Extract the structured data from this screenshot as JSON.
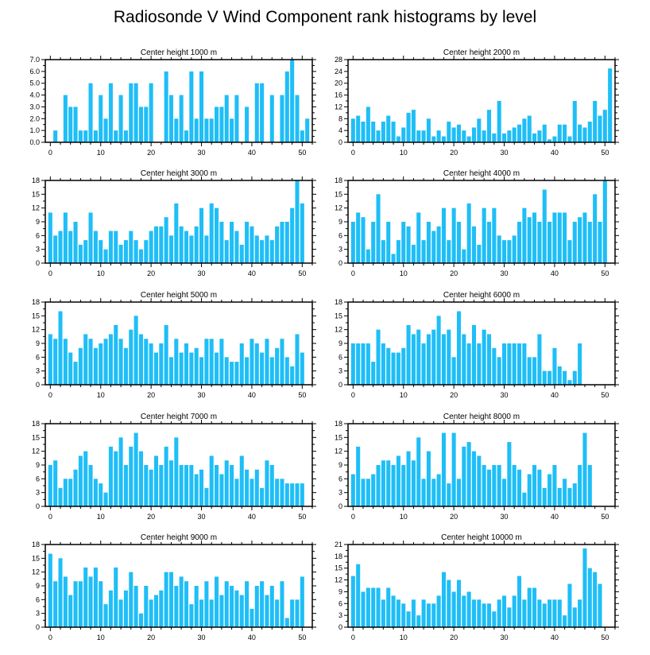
{
  "page_title": "Radiosonde V Wind Component rank histograms by level",
  "chart_data": [
    {
      "type": "bar",
      "title": "Center height 1000 m",
      "xlim": [
        -1,
        52
      ],
      "ylim": [
        0,
        7
      ],
      "yticks": [
        "0.0",
        "1.0",
        "2.0",
        "3.0",
        "4.0",
        "5.0",
        "6.0",
        "7.0"
      ],
      "ytick_values": [
        0,
        1,
        2,
        3,
        4,
        5,
        6,
        7
      ],
      "xticks": [
        "0",
        "10",
        "20",
        "30",
        "40",
        "50"
      ],
      "xtick_values": [
        0,
        10,
        20,
        30,
        40,
        50
      ],
      "values": [
        0,
        1,
        0,
        4,
        3,
        3,
        1,
        1,
        5,
        1,
        4,
        2,
        5,
        1,
        4,
        1,
        5,
        5,
        3,
        3,
        5,
        0,
        0,
        6,
        4,
        2,
        4,
        1,
        6,
        2,
        6,
        2,
        2,
        3,
        3,
        4,
        2,
        4,
        0,
        3,
        0,
        5,
        5,
        0,
        4,
        0,
        4,
        6,
        7,
        4,
        1,
        2
      ]
    },
    {
      "type": "bar",
      "title": "Center height 2000 m",
      "xlim": [
        -1,
        52
      ],
      "ylim": [
        0,
        28
      ],
      "yticks": [
        "0",
        "4",
        "8",
        "12",
        "16",
        "20",
        "24",
        "28"
      ],
      "ytick_values": [
        0,
        4,
        8,
        12,
        16,
        20,
        24,
        28
      ],
      "xticks": [
        "0",
        "10",
        "20",
        "30",
        "40",
        "50"
      ],
      "xtick_values": [
        0,
        10,
        20,
        30,
        40,
        50
      ],
      "values": [
        8,
        9,
        7,
        12,
        7,
        4,
        7,
        9,
        7,
        2,
        5,
        10,
        11,
        4,
        4,
        8,
        2,
        4,
        2,
        7,
        5,
        6,
        4,
        2,
        5,
        8,
        4,
        11,
        3,
        14,
        3,
        4,
        5,
        6,
        8,
        9,
        3,
        4,
        6,
        1,
        2,
        6,
        6,
        2,
        14,
        6,
        5,
        7,
        14,
        9,
        11,
        25
      ]
    },
    {
      "type": "bar",
      "title": "Center height 3000 m",
      "xlim": [
        -1,
        52
      ],
      "ylim": [
        0,
        18
      ],
      "yticks": [
        "0",
        "3",
        "6",
        "9",
        "12",
        "15",
        "18"
      ],
      "ytick_values": [
        0,
        3,
        6,
        9,
        12,
        15,
        18
      ],
      "xticks": [
        "0",
        "10",
        "20",
        "30",
        "40",
        "50"
      ],
      "xtick_values": [
        0,
        10,
        20,
        30,
        40,
        50
      ],
      "values": [
        11,
        6,
        7,
        11,
        7,
        9,
        4,
        5,
        11,
        7,
        5,
        3,
        7,
        7,
        4,
        5,
        7,
        5,
        3,
        5,
        7,
        8,
        8,
        10,
        6,
        13,
        8,
        7,
        6,
        8,
        12,
        6,
        13,
        12,
        9,
        5,
        9,
        7,
        4,
        9,
        8,
        6,
        5,
        6,
        5,
        8,
        9,
        9,
        12,
        18,
        13
      ]
    },
    {
      "type": "bar",
      "title": "Center height 4000 m",
      "xlim": [
        -1,
        52
      ],
      "ylim": [
        0,
        18
      ],
      "yticks": [
        "0",
        "3",
        "6",
        "9",
        "12",
        "15",
        "18"
      ],
      "ytick_values": [
        0,
        3,
        6,
        9,
        12,
        15,
        18
      ],
      "xticks": [
        "0",
        "10",
        "20",
        "30",
        "40",
        "50"
      ],
      "xtick_values": [
        0,
        10,
        20,
        30,
        40,
        50
      ],
      "values": [
        9,
        11,
        10,
        3,
        9,
        15,
        5,
        9,
        2,
        5,
        9,
        8,
        4,
        11,
        5,
        9,
        7,
        8,
        12,
        5,
        12,
        9,
        3,
        13,
        8,
        4,
        12,
        9,
        12,
        6,
        5,
        5,
        6,
        9,
        12,
        10,
        11,
        9,
        16,
        9,
        11,
        11,
        11,
        5,
        9,
        10,
        11,
        9,
        15,
        9,
        18
      ]
    },
    {
      "type": "bar",
      "title": "Center height 5000 m",
      "xlim": [
        -1,
        52
      ],
      "ylim": [
        0,
        18
      ],
      "yticks": [
        "0",
        "3",
        "6",
        "9",
        "12",
        "15",
        "18"
      ],
      "ytick_values": [
        0,
        3,
        6,
        9,
        12,
        15,
        18
      ],
      "xticks": [
        "0",
        "10",
        "20",
        "30",
        "40",
        "50"
      ],
      "xtick_values": [
        0,
        10,
        20,
        30,
        40,
        50
      ],
      "values": [
        11,
        10,
        16,
        10,
        7,
        5,
        8,
        11,
        10,
        8,
        9,
        10,
        11,
        13,
        10,
        8,
        12,
        15,
        11,
        10,
        9,
        7,
        9,
        13,
        6,
        10,
        7,
        9,
        7,
        8,
        6,
        10,
        10,
        7,
        10,
        6,
        5,
        5,
        9,
        6,
        10,
        9,
        7,
        10,
        6,
        8,
        10,
        6,
        4,
        11,
        7
      ]
    },
    {
      "type": "bar",
      "title": "Center height 6000 m",
      "xlim": [
        -1,
        52
      ],
      "ylim": [
        0,
        18
      ],
      "yticks": [
        "0",
        "3",
        "6",
        "9",
        "12",
        "15",
        "18"
      ],
      "ytick_values": [
        0,
        3,
        6,
        9,
        12,
        15,
        18
      ],
      "xticks": [
        "0",
        "10",
        "20",
        "30",
        "40",
        "50"
      ],
      "xtick_values": [
        0,
        10,
        20,
        30,
        40,
        50
      ],
      "values": [
        9,
        9,
        9,
        9,
        5,
        12,
        9,
        8,
        7,
        7,
        8,
        13,
        11,
        12,
        9,
        11,
        12,
        15,
        11,
        12,
        6,
        16,
        11,
        9,
        13,
        9,
        12,
        11,
        8,
        6,
        9,
        9,
        9,
        9,
        9,
        6,
        6,
        11,
        3,
        3,
        8,
        4,
        3,
        1,
        3,
        9
      ]
    },
    {
      "type": "bar",
      "title": "Center height 7000 m",
      "xlim": [
        -1,
        52
      ],
      "ylim": [
        0,
        18
      ],
      "yticks": [
        "0",
        "3",
        "6",
        "9",
        "12",
        "15",
        "18"
      ],
      "ytick_values": [
        0,
        3,
        6,
        9,
        12,
        15,
        18
      ],
      "xticks": [
        "0",
        "10",
        "20",
        "30",
        "40",
        "50"
      ],
      "xtick_values": [
        0,
        10,
        20,
        30,
        40,
        50
      ],
      "values": [
        9,
        10,
        4,
        6,
        6,
        8,
        11,
        12,
        9,
        6,
        5,
        3,
        13,
        12,
        15,
        9,
        13,
        16,
        12,
        9,
        8,
        11,
        9,
        13,
        10,
        15,
        9,
        9,
        9,
        7,
        8,
        4,
        11,
        9,
        7,
        10,
        9,
        6,
        11,
        8,
        6,
        8,
        4,
        10,
        9,
        6,
        6,
        5,
        5,
        5,
        5
      ]
    },
    {
      "type": "bar",
      "title": "Center height 8000 m",
      "xlim": [
        -1,
        52
      ],
      "ylim": [
        0,
        18
      ],
      "yticks": [
        "0",
        "3",
        "6",
        "9",
        "12",
        "15",
        "18"
      ],
      "ytick_values": [
        0,
        3,
        6,
        9,
        12,
        15,
        18
      ],
      "xticks": [
        "0",
        "10",
        "20",
        "30",
        "40",
        "50"
      ],
      "xtick_values": [
        0,
        10,
        20,
        30,
        40,
        50
      ],
      "values": [
        7,
        13,
        6,
        6,
        7,
        9,
        10,
        10,
        9,
        11,
        9,
        12,
        10,
        15,
        6,
        12,
        6,
        7,
        16,
        5,
        16,
        6,
        13,
        14,
        12,
        11,
        9,
        8,
        9,
        9,
        6,
        14,
        9,
        8,
        3,
        7,
        9,
        8,
        4,
        7,
        9,
        4,
        6,
        4,
        5,
        9,
        16,
        9
      ]
    },
    {
      "type": "bar",
      "title": "Center height 9000 m",
      "xlim": [
        -1,
        52
      ],
      "ylim": [
        0,
        18
      ],
      "yticks": [
        "0",
        "3",
        "6",
        "9",
        "12",
        "15",
        "18"
      ],
      "ytick_values": [
        0,
        3,
        6,
        9,
        12,
        15,
        18
      ],
      "xticks": [
        "0",
        "10",
        "20",
        "30",
        "40",
        "50"
      ],
      "xtick_values": [
        0,
        10,
        20,
        30,
        40,
        50
      ],
      "values": [
        16,
        10,
        15,
        11,
        7,
        10,
        10,
        13,
        11,
        13,
        10,
        5,
        8,
        13,
        6,
        8,
        12,
        9,
        3,
        9,
        6,
        7,
        8,
        12,
        12,
        9,
        11,
        10,
        5,
        9,
        6,
        10,
        6,
        11,
        7,
        10,
        9,
        8,
        7,
        10,
        4,
        9,
        10,
        7,
        9,
        6,
        10,
        2,
        6,
        6,
        11
      ]
    },
    {
      "type": "bar",
      "title": "Center height 10000 m",
      "xlim": [
        -1,
        52
      ],
      "ylim": [
        0,
        21
      ],
      "yticks": [
        "0",
        "3",
        "6",
        "9",
        "12",
        "15",
        "18",
        "21"
      ],
      "ytick_values": [
        0,
        3,
        6,
        9,
        12,
        15,
        18,
        21
      ],
      "xticks": [
        "0",
        "10",
        "20",
        "30",
        "40",
        "50"
      ],
      "xtick_values": [
        0,
        10,
        20,
        30,
        40,
        50
      ],
      "values": [
        13,
        16,
        9,
        10,
        10,
        10,
        7,
        10,
        8,
        7,
        6,
        4,
        7,
        3,
        7,
        6,
        6,
        8,
        14,
        12,
        9,
        12,
        8,
        9,
        7,
        7,
        6,
        6,
        4,
        7,
        8,
        5,
        8,
        13,
        7,
        10,
        10,
        7,
        6,
        7,
        7,
        7,
        3,
        11,
        5,
        7,
        20,
        15,
        14,
        11
      ]
    }
  ]
}
